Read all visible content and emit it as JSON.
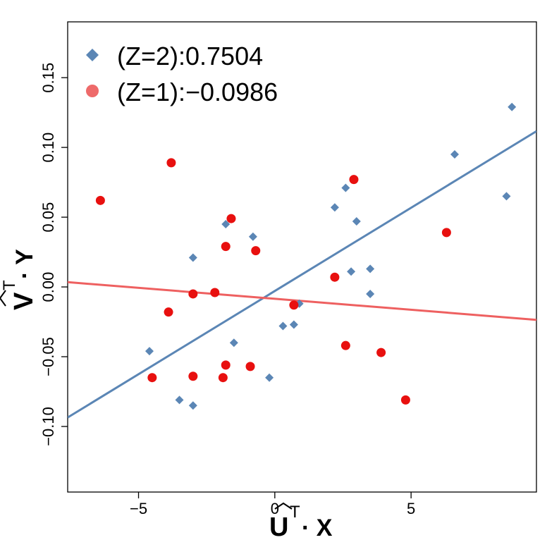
{
  "chart_data": {
    "type": "scatter",
    "title": "",
    "xlabel_base": "U",
    "xlabel_sup": "T",
    "xlabel_rest": " · X",
    "ylabel_base": "V",
    "ylabel_sup": "T",
    "ylabel_rest": " · Y",
    "xlim": [
      -7.6,
      9.6
    ],
    "ylim": [
      -0.147,
      0.19
    ],
    "xticks": [
      -5,
      0,
      5
    ],
    "xtick_labels": [
      "−5",
      "0",
      "5"
    ],
    "yticks": [
      -0.1,
      -0.05,
      0.0,
      0.05,
      0.1,
      0.15
    ],
    "ytick_labels": [
      "−0.10",
      "−0.05",
      "0.00",
      "0.05",
      "0.10",
      "0.15"
    ],
    "grid": false,
    "legend_position": "top-left",
    "series": [
      {
        "name": "(Z=2):0.7504",
        "marker": "diamond",
        "color": "#5b86b5",
        "line_color": "#5b86b5",
        "fit_line": {
          "slope": 0.01193,
          "intercept": -0.0029
        },
        "points": [
          [
            -4.6,
            -0.046
          ],
          [
            -3.0,
            0.021
          ],
          [
            -3.5,
            -0.081
          ],
          [
            -3.0,
            -0.085
          ],
          [
            -1.8,
            0.045
          ],
          [
            -1.5,
            -0.04
          ],
          [
            -0.8,
            0.036
          ],
          [
            -0.2,
            -0.065
          ],
          [
            0.3,
            -0.028
          ],
          [
            0.7,
            -0.027
          ],
          [
            0.9,
            -0.012
          ],
          [
            2.2,
            0.057
          ],
          [
            2.6,
            0.071
          ],
          [
            2.8,
            0.011
          ],
          [
            3.0,
            0.047
          ],
          [
            3.5,
            0.013
          ],
          [
            3.5,
            -0.005
          ],
          [
            6.6,
            0.095
          ],
          [
            8.5,
            0.065
          ],
          [
            8.7,
            0.129
          ]
        ]
      },
      {
        "name": "(Z=1):−0.0986",
        "marker": "circle",
        "color": "#e8100f",
        "line_color": "#ee6060",
        "legend_color": "#ee6a6a",
        "fit_line": {
          "slope": -0.00157,
          "intercept": -0.0085
        },
        "points": [
          [
            -6.4,
            0.062
          ],
          [
            -4.5,
            -0.065
          ],
          [
            -3.8,
            0.089
          ],
          [
            -3.9,
            -0.018
          ],
          [
            -3.0,
            -0.005
          ],
          [
            -3.0,
            -0.064
          ],
          [
            -2.2,
            -0.004
          ],
          [
            -1.8,
            0.029
          ],
          [
            -1.6,
            0.049
          ],
          [
            -1.9,
            -0.065
          ],
          [
            -1.8,
            -0.056
          ],
          [
            -0.9,
            -0.057
          ],
          [
            -0.7,
            0.026
          ],
          [
            0.7,
            -0.013
          ],
          [
            2.2,
            0.007
          ],
          [
            2.6,
            -0.042
          ],
          [
            2.9,
            0.077
          ],
          [
            3.9,
            -0.047
          ],
          [
            4.8,
            -0.081
          ],
          [
            6.3,
            0.039
          ]
        ]
      }
    ]
  }
}
